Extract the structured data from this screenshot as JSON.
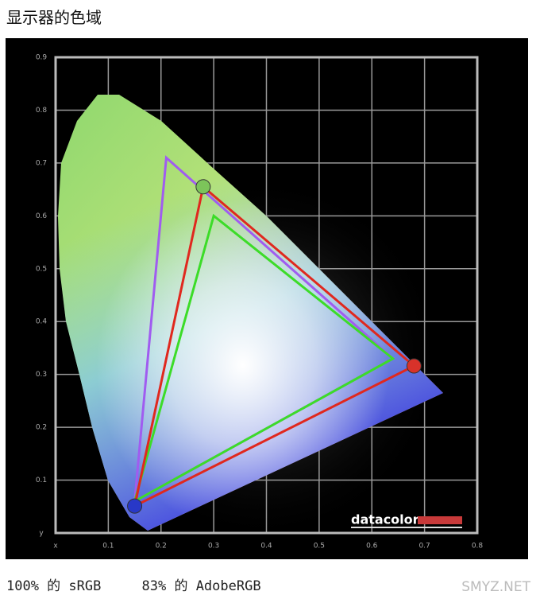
{
  "title": "显示器的色域",
  "chart_data": {
    "type": "polygon",
    "xlim": [
      0,
      0.8
    ],
    "ylim": [
      0,
      0.9
    ],
    "xticks": [
      {
        "value": 0,
        "label": "x"
      },
      0.1,
      0.2,
      0.3,
      0.4,
      0.5,
      0.6,
      0.7,
      0.8
    ],
    "yticks": [
      {
        "value": 0,
        "label": "y"
      },
      0.1,
      0.2,
      0.3,
      0.4,
      0.5,
      0.6,
      0.7,
      0.8,
      0.9
    ],
    "grid": true,
    "logo": "datacolor",
    "series": [
      {
        "color": "#a05cf0",
        "x": [
          0.21,
          0.64,
          0.15
        ],
        "values": [
          0.71,
          0.33,
          0.06
        ]
      },
      {
        "color": "#3cdc28",
        "x": [
          0.3,
          0.64,
          0.15
        ],
        "values": [
          0.6,
          0.33,
          0.06
        ]
      },
      {
        "color": "#e0281e",
        "x": [
          0.28,
          0.68,
          0.15
        ],
        "values": [
          0.655,
          0.316,
          0.051
        ],
        "marker_colors": [
          "#7cc45a",
          "#d8322a",
          "#2838c8"
        ]
      }
    ]
  },
  "caption": "100% 的 sRGB     83% 的 AdobeRGB",
  "watermark": "SMYZ.NET"
}
